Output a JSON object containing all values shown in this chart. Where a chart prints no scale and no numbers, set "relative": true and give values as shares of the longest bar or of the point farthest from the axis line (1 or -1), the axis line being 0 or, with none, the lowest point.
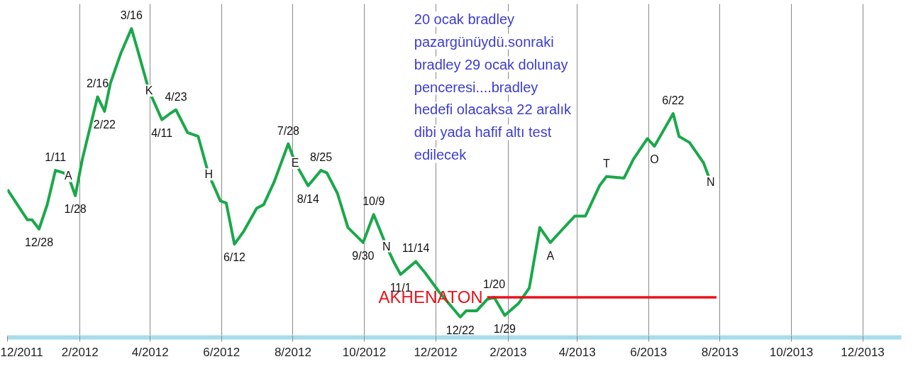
{
  "chart_data": {
    "type": "line",
    "relative": true,
    "grid": "x",
    "line_style": "solid",
    "marker": "none",
    "xlim": [
      "2011-12-01",
      "2014-01-03"
    ],
    "xticks": [
      {
        "value": "2011-12-01",
        "label": "12/2011"
      },
      {
        "value": "2012-02-01",
        "label": "2/2012"
      },
      {
        "value": "2012-04-01",
        "label": "4/2012"
      },
      {
        "value": "2012-06-01",
        "label": "6/2012"
      },
      {
        "value": "2012-08-01",
        "label": "8/2012"
      },
      {
        "value": "2012-10-01",
        "label": "10/2012"
      },
      {
        "value": "2012-12-01",
        "label": "12/2012"
      },
      {
        "value": "2013-02-01",
        "label": "2/2013"
      },
      {
        "value": "2013-04-01",
        "label": "4/2013"
      },
      {
        "value": "2013-06-01",
        "label": "6/2013"
      },
      {
        "value": "2013-08-01",
        "label": "8/2013"
      },
      {
        "value": "2013-10-01",
        "label": "10/2013"
      },
      {
        "value": "2013-12-01",
        "label": "12/2013"
      }
    ],
    "series": [
      {
        "color": "#1aa84a",
        "x": [
          "2011-12-01",
          "2011-12-18",
          "2011-12-22",
          "2011-12-28",
          "2012-01-04",
          "2012-01-11",
          "2012-01-18",
          "2012-01-22",
          "2012-01-28",
          "2012-02-03",
          "2012-02-16",
          "2012-02-22",
          "2012-02-27",
          "2012-03-07",
          "2012-03-16",
          "2012-03-22",
          "2012-03-31",
          "2012-04-11",
          "2012-04-18",
          "2012-04-23",
          "2012-05-03",
          "2012-05-12",
          "2012-05-21",
          "2012-05-31",
          "2012-06-05",
          "2012-06-12",
          "2012-06-20",
          "2012-07-01",
          "2012-07-07",
          "2012-07-16",
          "2012-07-28",
          "2012-08-03",
          "2012-08-14",
          "2012-08-25",
          "2012-08-30",
          "2012-09-08",
          "2012-09-17",
          "2012-09-30",
          "2012-10-09",
          "2012-10-20",
          "2012-10-26",
          "2012-11-01",
          "2012-11-10",
          "2012-11-14",
          "2012-11-22",
          "2012-12-04",
          "2012-12-22",
          "2012-12-27",
          "2013-01-05",
          "2013-01-14",
          "2013-01-20",
          "2013-01-29",
          "2013-02-10",
          "2013-02-19",
          "2013-02-28",
          "2013-03-09",
          "2013-03-15",
          "2013-03-30",
          "2013-04-08",
          "2013-04-20",
          "2013-04-26",
          "2013-05-11",
          "2013-05-19",
          "2013-05-31",
          "2013-06-06",
          "2013-06-22",
          "2013-06-27",
          "2013-07-06",
          "2013-07-18",
          "2013-07-24"
        ],
        "values": [
          0.479,
          0.381,
          0.381,
          0.351,
          0.43,
          0.541,
          0.533,
          0.523,
          0.459,
          0.577,
          0.779,
          0.732,
          0.823,
          0.921,
          1,
          0.921,
          0.799,
          0.705,
          0.725,
          0.737,
          0.663,
          0.651,
          0.528,
          0.442,
          0.435,
          0.302,
          0.344,
          0.418,
          0.43,
          0.504,
          0.627,
          0.565,
          0.491,
          0.541,
          0.533,
          0.467,
          0.356,
          0.307,
          0.398,
          0.295,
          0.246,
          0.204,
          0.233,
          0.246,
          0.209,
          0.147,
          0.066,
          0.086,
          0.086,
          0.123,
          0.13,
          0.071,
          0.111,
          0.16,
          0.356,
          0.307,
          0.332,
          0.393,
          0.393,
          0.491,
          0.521,
          0.516,
          0.577,
          0.644,
          0.619,
          0.725,
          0.651,
          0.631,
          0.565,
          0.504
        ]
      },
      {
        "name": "AKHENATON",
        "color": "#e8141c",
        "x": [
          "2013-01-14",
          "2013-07-29"
        ],
        "values": [
          0.13,
          0.13
        ]
      }
    ],
    "annotations": [
      "20 ocak bradley pazargünüydü.sonraki bradley 29 ocak dolunay penceresi....bradley hedefi olacaksa 22 aralık dibi yada hafif altı test edilecek",
      {
        "text": "12/28",
        "x": "2011-12-28",
        "y": 0.351
      },
      {
        "text": "1/11",
        "x": "2012-01-11",
        "y": 0.541
      },
      {
        "text": "1/28",
        "x": "2012-01-28",
        "y": 0.459
      },
      {
        "text": "2/16",
        "x": "2012-02-16",
        "y": 0.779
      },
      {
        "text": "2/22",
        "x": "2012-02-22",
        "y": 0.732
      },
      {
        "text": "3/16",
        "x": "2012-03-16",
        "y": 1
      },
      {
        "text": "4/11",
        "x": "2012-04-11",
        "y": 0.705
      },
      {
        "text": "4/23",
        "x": "2012-04-23",
        "y": 0.737
      },
      {
        "text": "6/12",
        "x": "2012-06-12",
        "y": 0.302
      },
      {
        "text": "7/28",
        "x": "2012-07-28",
        "y": 0.627
      },
      {
        "text": "8/14",
        "x": "2012-08-14",
        "y": 0.491
      },
      {
        "text": "8/25",
        "x": "2012-08-25",
        "y": 0.541
      },
      {
        "text": "9/30",
        "x": "2012-09-30",
        "y": 0.307
      },
      {
        "text": "10/9",
        "x": "2012-10-09",
        "y": 0.398
      },
      {
        "text": "11/14",
        "x": "2012-11-14",
        "y": 0.246
      },
      {
        "text": "11/1",
        "x": "2012-11-01",
        "y": 0.204
      },
      {
        "text": "12/22",
        "x": "2012-12-22",
        "y": 0.066
      },
      {
        "text": "1/20",
        "x": "2013-01-20",
        "y": 0.13
      },
      {
        "text": "1/29",
        "x": "2013-01-29",
        "y": 0.071
      },
      {
        "text": "6/22",
        "x": "2013-06-22",
        "y": 0.725
      },
      {
        "text": "A",
        "x": "2012-01-22",
        "y": 0.523
      },
      {
        "text": "K",
        "x": "2012-03-31",
        "y": 0.799
      },
      {
        "text": "H",
        "x": "2012-05-21",
        "y": 0.528
      },
      {
        "text": "E",
        "x": "2012-08-03",
        "y": 0.565
      },
      {
        "text": "N",
        "x": "2012-10-20",
        "y": 0.295
      },
      {
        "text": "A",
        "x": "2013-03-09",
        "y": 0.307
      },
      {
        "text": "T",
        "x": "2013-04-26",
        "y": 0.521
      },
      {
        "text": "O",
        "x": "2013-06-06",
        "y": 0.619
      },
      {
        "text": "N",
        "x": "2013-07-24",
        "y": 0.504
      }
    ]
  }
}
